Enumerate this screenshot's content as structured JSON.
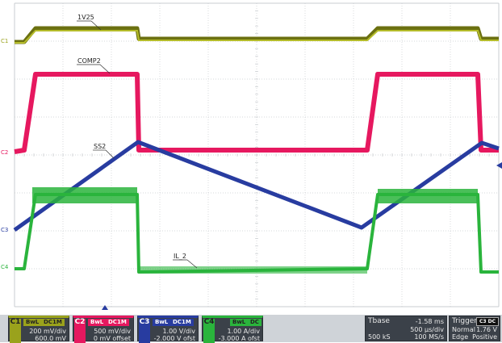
{
  "channels": [
    {
      "id": "C1",
      "label": "C1",
      "color": "#9aa21c",
      "trace_label": "1V25",
      "coupling_bw": "BwL",
      "coupling": "DC1M",
      "scale": "200 mV/div",
      "offset": "600.0 mV"
    },
    {
      "id": "C2",
      "label": "C2",
      "color": "#e6185f",
      "trace_label": "COMP2",
      "coupling_bw": "BwL",
      "coupling": "DC1M",
      "scale": "500 mV/div",
      "offset": "0 mV offset"
    },
    {
      "id": "C3",
      "label": "C3",
      "color": "#283ca0",
      "trace_label": "SS2",
      "coupling_bw": "BwL",
      "coupling": "DC1M",
      "scale": "1.00 V/div",
      "offset": "-2.000 V ofst"
    },
    {
      "id": "C4",
      "label": "C4",
      "color": "#2ab43c",
      "trace_label": "IL_2",
      "coupling_bw": "BwL",
      "coupling": "DC",
      "scale": "1.00 A/div",
      "offset": "-3.000 A ofst"
    }
  ],
  "timebase": {
    "label": "Tbase",
    "delay": "-1.58 ms",
    "per_div": "500 µs/div",
    "samples": "500 kS",
    "rate": "100 MS/s"
  },
  "trigger": {
    "label": "Trigger",
    "source": "C3 DC",
    "mode": "Normal",
    "level": "1.76 V",
    "type": "Edge",
    "slope": "Positive"
  },
  "colors": {
    "grid": "#c9ccd0",
    "background": "#ffffff",
    "statusbar": "#cfd3d8",
    "panel": "#3b4149",
    "trigger_marker": "#283ca0"
  }
}
